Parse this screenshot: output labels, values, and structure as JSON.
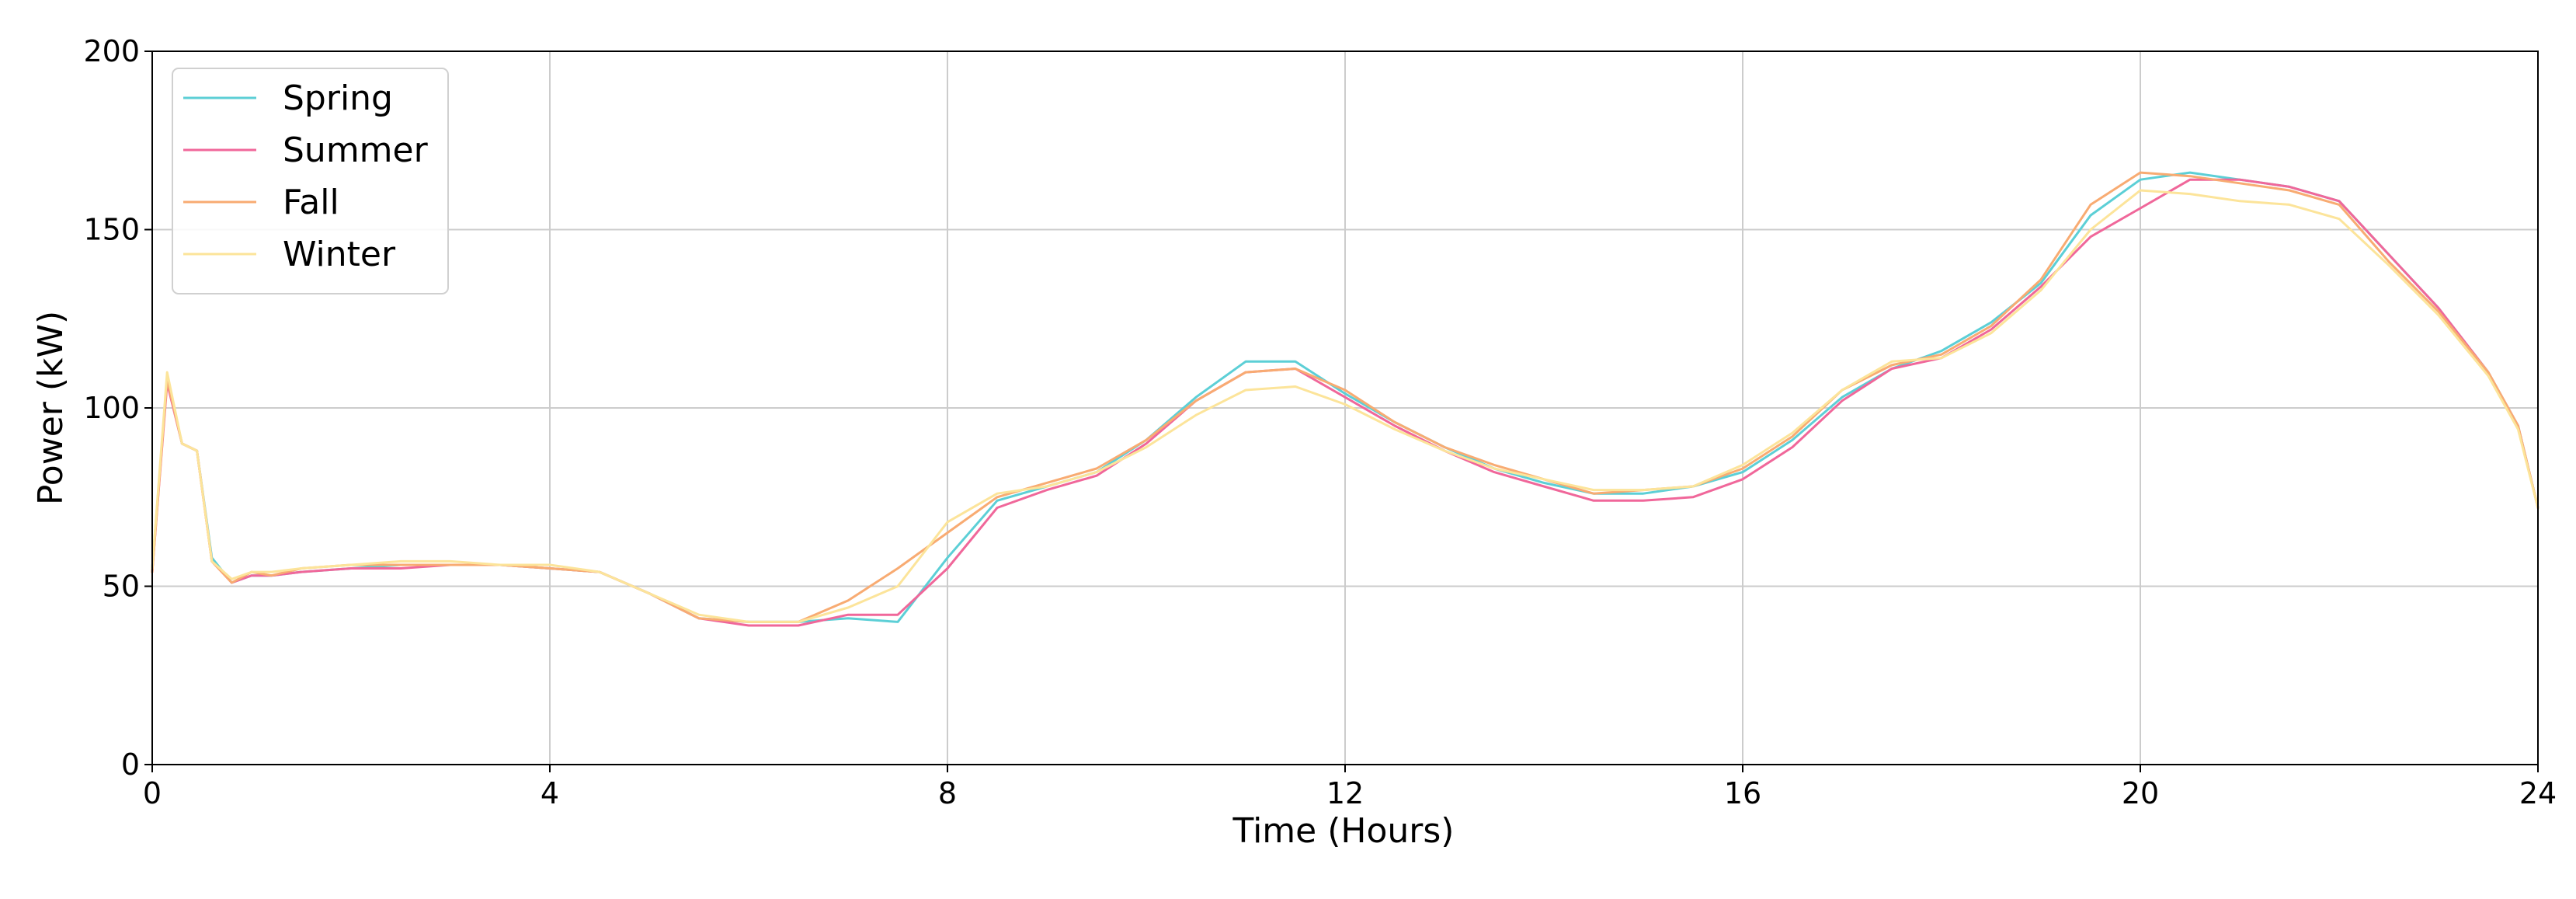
{
  "chart_data": {
    "type": "line",
    "title": "",
    "xlabel": "Time (Hours)",
    "ylabel": "Power (kW)",
    "xlim": [
      0,
      24
    ],
    "ylim": [
      0,
      200
    ],
    "xticks": [
      0,
      4,
      8,
      12,
      16,
      20,
      24
    ],
    "yticks": [
      0,
      50,
      100,
      150,
      200
    ],
    "grid": true,
    "legend": "top-left",
    "x": [
      0,
      0.15,
      0.3,
      0.45,
      0.6,
      0.8,
      1.0,
      1.2,
      1.5,
      2.0,
      2.5,
      3.0,
      3.5,
      4.0,
      4.5,
      5.0,
      5.5,
      6.0,
      6.5,
      7.0,
      7.5,
      8.0,
      8.5,
      9.0,
      9.5,
      10.0,
      10.5,
      11.0,
      11.5,
      12.0,
      12.5,
      13.0,
      13.5,
      14.0,
      14.5,
      15.0,
      15.5,
      16.0,
      16.5,
      17.0,
      17.5,
      18.0,
      18.5,
      19.0,
      19.5,
      20.0,
      20.5,
      21.0,
      21.5,
      22.0,
      22.5,
      23.0,
      23.5,
      23.8,
      24.0
    ],
    "series": [
      {
        "name": "Spring",
        "color": "#5ccfd6",
        "values": [
          55,
          108,
          90,
          88,
          58,
          51,
          53,
          53,
          54,
          55,
          56,
          56,
          56,
          55,
          54,
          48,
          41,
          40,
          40,
          41,
          40,
          58,
          74,
          78,
          82,
          91,
          103,
          113,
          113,
          104,
          96,
          89,
          83,
          79,
          76,
          76,
          78,
          82,
          91,
          103,
          111,
          116,
          124,
          135,
          154,
          164,
          166,
          164,
          162,
          158,
          143,
          128,
          110,
          95,
          72
        ]
      },
      {
        "name": "Summer",
        "color": "#f0679a",
        "values": [
          54,
          107,
          90,
          88,
          57,
          51,
          53,
          53,
          54,
          55,
          55,
          56,
          56,
          55,
          54,
          48,
          41,
          39,
          39,
          42,
          42,
          55,
          72,
          77,
          81,
          90,
          102,
          110,
          111,
          103,
          95,
          88,
          82,
          78,
          74,
          74,
          75,
          80,
          89,
          102,
          111,
          114,
          122,
          134,
          148,
          156,
          164,
          164,
          162,
          158,
          143,
          128,
          110,
          95,
          72
        ]
      },
      {
        "name": "Fall",
        "color": "#f8ab72",
        "values": [
          54,
          108,
          90,
          88,
          57,
          51,
          54,
          53,
          55,
          56,
          56,
          56,
          56,
          55,
          54,
          48,
          41,
          40,
          40,
          46,
          55,
          65,
          75,
          79,
          83,
          91,
          102,
          110,
          111,
          105,
          96,
          89,
          84,
          80,
          76,
          77,
          78,
          83,
          92,
          105,
          112,
          115,
          123,
          136,
          157,
          166,
          165,
          163,
          161,
          157,
          141,
          127,
          110,
          95,
          72
        ]
      },
      {
        "name": "Winter",
        "color": "#fce49a",
        "values": [
          55,
          110,
          90,
          88,
          57,
          52,
          54,
          54,
          55,
          56,
          57,
          57,
          56,
          56,
          54,
          48,
          42,
          40,
          40,
          44,
          50,
          68,
          76,
          78,
          82,
          89,
          98,
          105,
          106,
          101,
          94,
          88,
          83,
          80,
          77,
          77,
          78,
          84,
          93,
          105,
          113,
          114,
          121,
          133,
          150,
          161,
          160,
          158,
          157,
          153,
          140,
          126,
          109,
          94,
          72
        ]
      }
    ]
  }
}
